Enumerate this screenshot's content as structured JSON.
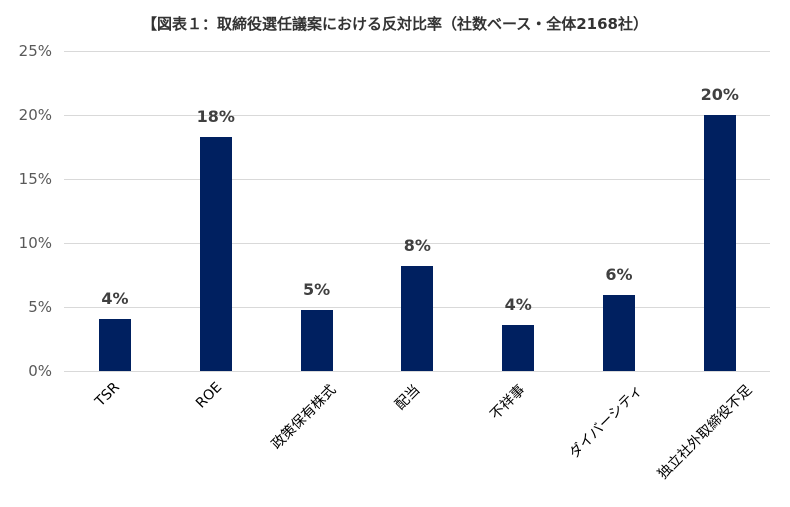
{
  "chart_data": {
    "type": "bar",
    "title": "【図表１：取締役選任議案における反対比率（社数ベース・全体2168社）",
    "xlabel": "",
    "ylabel": "",
    "ylim": [
      0,
      25
    ],
    "yticks": [
      "0%",
      "5%",
      "10%",
      "15%",
      "20%",
      "25%"
    ],
    "grid": true,
    "legend": null,
    "bar_color": "#002060",
    "categories": [
      "TSR",
      "ROE",
      "政策保有株式",
      "配当",
      "不祥事",
      "ダイバーシティ",
      "独立社外取締役不足"
    ],
    "values": [
      4.1,
      18.3,
      4.8,
      8.2,
      3.6,
      5.9,
      20.0
    ],
    "data_labels": [
      "4%",
      "18%",
      "5%",
      "8%",
      "4%",
      "6%",
      "20%"
    ]
  }
}
